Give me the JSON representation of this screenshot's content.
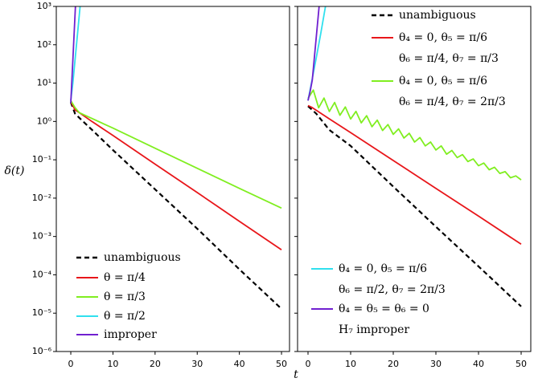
{
  "chart_data": [
    {
      "type": "line",
      "ylabel": "δ(t)",
      "log_y": true,
      "xlim": [
        -3.44,
        51.9
      ],
      "xticks": [
        0,
        10,
        20,
        30,
        40,
        50
      ],
      "ylim": [
        1e-06,
        1000
      ],
      "yticks": [
        {
          "value": 1e-06,
          "label": "10⁻⁶"
        },
        {
          "value": 1e-05,
          "label": "10⁻⁵"
        },
        {
          "value": 0.0001,
          "label": "10⁻⁴"
        },
        {
          "value": 0.001,
          "label": "10⁻³"
        },
        {
          "value": 0.01,
          "label": "10⁻²"
        },
        {
          "value": 0.1,
          "label": "10⁻¹"
        },
        {
          "value": 1,
          "label": "10⁰"
        },
        {
          "value": 10,
          "label": "10¹"
        },
        {
          "value": 100,
          "label": "10²"
        },
        {
          "value": 1000,
          "label": "10³"
        }
      ],
      "series": [
        {
          "name": "unambiguous",
          "color": "#000000",
          "dashed": true,
          "x": [
            0,
            1,
            2,
            5,
            10,
            20,
            30,
            40,
            50
          ],
          "values": [
            3.2,
            1.6,
            1.25,
            0.61,
            0.18,
            0.017,
            0.0016,
            0.00014,
            1.3e-05
          ]
        },
        {
          "name": "θ = π/4",
          "color": "#e8161a",
          "x": [
            0,
            1,
            2,
            5,
            10,
            20,
            30,
            40,
            50
          ],
          "values": [
            3.3,
            2.0,
            1.7,
            1.0,
            0.43,
            0.077,
            0.014,
            0.0025,
            0.00045
          ]
        },
        {
          "name": "θ = π/3",
          "color": "#80ee20",
          "x": [
            0,
            1,
            2,
            5,
            10,
            20,
            30,
            40,
            50
          ],
          "values": [
            3.5,
            2.3,
            1.7,
            1.2,
            0.67,
            0.2,
            0.06,
            0.018,
            0.0055
          ]
        },
        {
          "name": "θ = π/2",
          "color": "#30e0ee",
          "x": [
            0,
            0.5,
            1,
            1.5,
            2.2
          ],
          "values": [
            3.5,
            10,
            40,
            150,
            1000
          ]
        },
        {
          "name": "improper",
          "color": "#7020d0",
          "x": [
            0,
            0.5,
            1.1
          ],
          "values": [
            3,
            40,
            1000
          ]
        }
      ]
    },
    {
      "type": "line",
      "xlabel": "t",
      "log_y": true,
      "xlim": [
        -2.45,
        52.26
      ],
      "xticks": [
        0,
        10,
        20,
        30,
        40,
        50
      ],
      "ylim": [
        1e-06,
        1000
      ],
      "series": [
        {
          "name": [
            "unambiguous"
          ],
          "color": "#000000",
          "dashed": true,
          "x": [
            0,
            1,
            2,
            5,
            10,
            20,
            30,
            40,
            50
          ],
          "values": [
            2.5,
            2.0,
            1.57,
            0.6,
            0.23,
            0.02,
            0.0018,
            0.000166,
            1.5e-05
          ]
        },
        {
          "name": [
            "θ₄ = 0, θ₅ = π/6",
            "θ₆ = π/4, θ₇ = π/3"
          ],
          "color": "#e8161a",
          "x": [
            0,
            1,
            2,
            5,
            10,
            20,
            30,
            40,
            50
          ],
          "values": [
            2.6,
            2.3,
            1.94,
            1.17,
            0.51,
            0.096,
            0.018,
            0.0034,
            0.00063
          ]
        },
        {
          "name": [
            "θ₄ = 0, θ₅ = π/6",
            "θ₆ = π/4, θ₇ = 2π/3"
          ],
          "color": "#80ee20",
          "x": [
            0,
            1.25,
            2.5,
            3.75,
            5,
            6.25,
            7.5,
            8.75,
            10,
            11.25,
            12.5,
            13.75,
            15,
            16.25,
            17.5,
            18.75,
            20,
            21.25,
            22.5,
            23.75,
            25,
            26.25,
            27.5,
            28.75,
            30,
            31.25,
            32.5,
            33.75,
            35,
            36.25,
            37.5,
            38.75,
            40,
            41.25,
            42.5,
            43.75,
            45,
            46.25,
            47.5,
            48.75,
            50
          ],
          "values": [
            4.0,
            6.6,
            2.27,
            4.08,
            1.82,
            3.12,
            1.45,
            2.39,
            1.16,
            1.83,
            0.92,
            1.41,
            0.73,
            1.08,
            0.58,
            0.83,
            0.46,
            0.64,
            0.37,
            0.49,
            0.29,
            0.38,
            0.23,
            0.29,
            0.18,
            0.23,
            0.14,
            0.175,
            0.114,
            0.136,
            0.09,
            0.105,
            0.07,
            0.082,
            0.055,
            0.064,
            0.044,
            0.049,
            0.034,
            0.038,
            0.03
          ]
        },
        {
          "name": [
            "θ₄ = 0, θ₅ = π/6",
            "θ₆ = π/2, θ₇ = 2π/3"
          ],
          "color": "#30e0ee",
          "x": [
            0,
            1,
            2,
            3,
            4.1
          ],
          "values": [
            3.5,
            13,
            50,
            200,
            1000
          ]
        },
        {
          "name": [
            "θ₄ = θ₅ = θ₆ = 0",
            "H₇ improper"
          ],
          "color": "#7020d0",
          "x": [
            0,
            0.5,
            1,
            2.6
          ],
          "values": [
            3.5,
            6,
            12,
            1000
          ]
        }
      ]
    }
  ]
}
